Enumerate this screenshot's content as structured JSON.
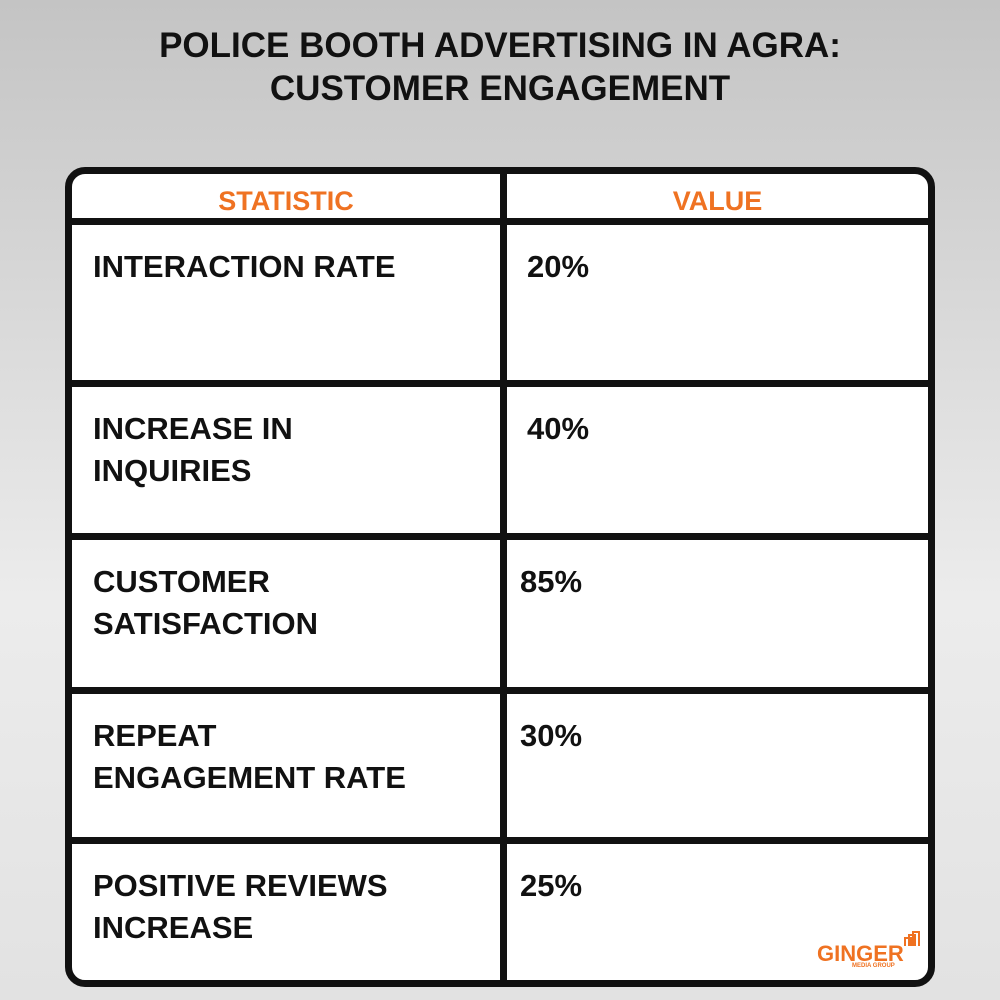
{
  "header": {
    "title": [
      "POLICE BOOTH ADVERTISING IN AGRA:",
      "CUSTOMER ENGAGEMENT"
    ]
  },
  "table": {
    "columns": [
      "STATISTIC",
      "VALUE"
    ],
    "rows": [
      [
        [
          "INTERACTION RATE"
        ],
        "20%"
      ],
      [
        [
          "INCREASE IN",
          "INQUIRIES"
        ],
        "40%"
      ],
      [
        [
          "CUSTOMER",
          "SATISFACTION"
        ],
        "85%"
      ],
      [
        [
          "REPEAT",
          "ENGAGEMENT RATE"
        ],
        "30%"
      ],
      [
        [
          "POSITIVE REVIEWS",
          "INCREASE"
        ],
        "25%"
      ]
    ]
  },
  "logo": {
    "name": "GINGER",
    "tagline": "MEDIA GROUP"
  }
}
